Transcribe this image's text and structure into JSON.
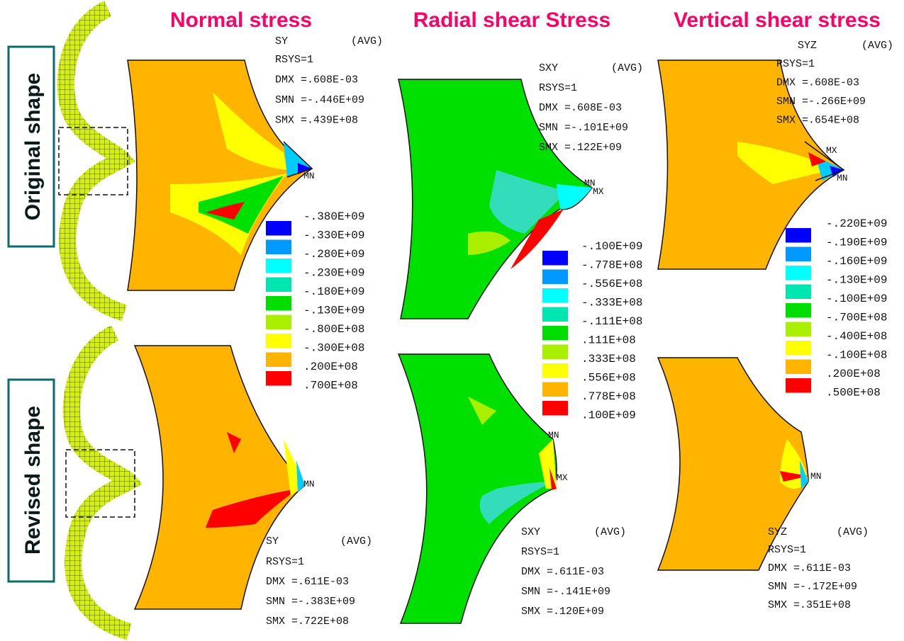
{
  "header": {
    "columns": [
      "Normal stress",
      "Radial shear Stress",
      "Vertical shear stress"
    ]
  },
  "rows": [
    {
      "label": "Original shape",
      "panels": [
        {
          "lines": [
            "SY",
            "(AVG)",
            "RSYS=1",
            "DMX =.608E-03",
            "SMN =-.446E+09",
            "SMX =.439E+08"
          ],
          "markers": [
            "MN"
          ]
        },
        {
          "lines": [
            "SXY",
            "(AVG)",
            "RSYS=1",
            "DMX =.608E-03",
            "SMN =-.101E+09",
            "SMX =.122E+09"
          ],
          "markers": [
            "MN",
            "MX"
          ]
        },
        {
          "lines": [
            "SYZ",
            "(AVG)",
            "RSYS=1",
            "DMX =.608E-03",
            "SMN =-.266E+09",
            "SMX =.654E+08"
          ],
          "markers": [
            "MX",
            "MN"
          ]
        }
      ]
    },
    {
      "label": "Revised shape",
      "panels": [
        {
          "lines": [
            "SY",
            "(AVG)",
            "RSYS=1",
            "DMX =.611E-03",
            "SMN =-.383E+09",
            "SMX =.722E+08"
          ],
          "markers": [
            "MN"
          ]
        },
        {
          "lines": [
            "SXY",
            "(AVG)",
            "RSYS=1",
            "DMX =.611E-03",
            "SMN =-.141E+09",
            "SMX =.120E+09"
          ],
          "markers": [
            "MN",
            "MX"
          ]
        },
        {
          "lines": [
            "SYZ",
            "(AVG)",
            "RSYS=1",
            "DMX =.611E-03",
            "SMN =-.172E+09",
            "SMX =.351E+08"
          ],
          "markers": [
            "MN"
          ]
        }
      ]
    }
  ],
  "legends": [
    {
      "labels": [
        "-.380E+09",
        "-.330E+09",
        "-.280E+09",
        "-.230E+09",
        "-.180E+09",
        "-.130E+09",
        "-.800E+08",
        "-.300E+08",
        ".200E+08",
        ".700E+08"
      ]
    },
    {
      "labels": [
        "-.100E+09",
        "-.778E+08",
        "-.556E+08",
        "-.333E+08",
        "-.111E+08",
        ".111E+08",
        ".333E+08",
        ".556E+08",
        ".778E+08",
        ".100E+09"
      ]
    },
    {
      "labels": [
        "-.220E+09",
        "-.190E+09",
        "-.160E+09",
        "-.130E+09",
        "-.100E+09",
        "-.700E+08",
        "-.400E+08",
        "-.100E+08",
        ".200E+08",
        ".500E+08"
      ]
    }
  ]
}
